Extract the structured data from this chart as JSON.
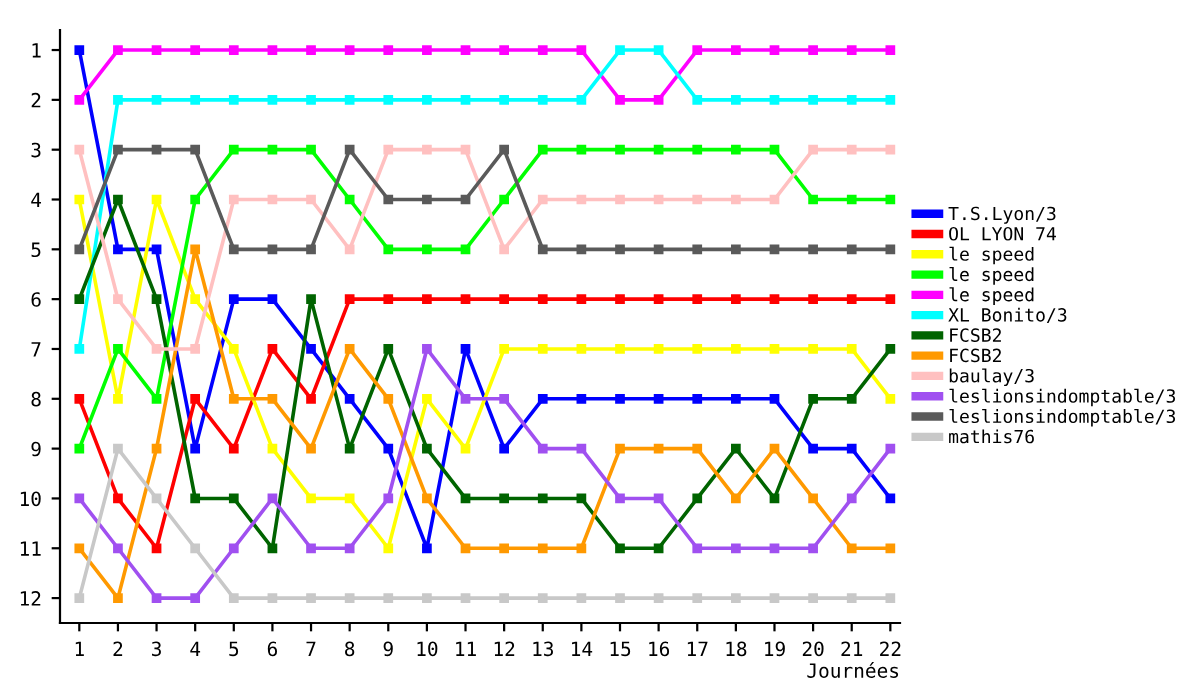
{
  "chart_data": {
    "type": "line",
    "xlabel": "Journées",
    "x": [
      1,
      2,
      3,
      4,
      5,
      6,
      7,
      8,
      9,
      10,
      11,
      12,
      13,
      14,
      15,
      16,
      17,
      18,
      19,
      20,
      21,
      22
    ],
    "xlim": [
      0.5,
      22.25
    ],
    "xticks": [
      1,
      2,
      3,
      4,
      5,
      6,
      7,
      8,
      9,
      10,
      11,
      12,
      13,
      14,
      15,
      16,
      17,
      18,
      19,
      20,
      21,
      22
    ],
    "ylim": [
      12.5,
      0.6
    ],
    "yticks": [
      1,
      2,
      3,
      4,
      5,
      6,
      7,
      8,
      9,
      10,
      11,
      12
    ],
    "grid": false,
    "legend": "right",
    "marker": "square",
    "line_style": "solid",
    "series": [
      {
        "name": "T.S.Lyon/3",
        "color": "#0000ff",
        "values": [
          1,
          5,
          5,
          9,
          6,
          6,
          7,
          8,
          9,
          11,
          7,
          9,
          8,
          8,
          8,
          8,
          8,
          8,
          8,
          9,
          9,
          10
        ]
      },
      {
        "name": "OL LYON 74",
        "color": "#ff0000",
        "values": [
          8,
          10,
          11,
          8,
          9,
          7,
          8,
          6,
          6,
          6,
          6,
          6,
          6,
          6,
          6,
          6,
          6,
          6,
          6,
          6,
          6,
          6
        ]
      },
      {
        "name": "le speed",
        "color": "#ffff00",
        "values": [
          4,
          8,
          4,
          6,
          7,
          9,
          10,
          10,
          11,
          8,
          9,
          7,
          7,
          7,
          7,
          7,
          7,
          7,
          7,
          7,
          7,
          8
        ]
      },
      {
        "name": "le speed",
        "color": "#00ff00",
        "values": [
          9,
          7,
          8,
          4,
          3,
          3,
          3,
          4,
          5,
          5,
          5,
          4,
          3,
          3,
          3,
          3,
          3,
          3,
          3,
          4,
          4,
          4
        ]
      },
      {
        "name": "le speed",
        "color": "#ff00ff",
        "values": [
          2,
          1,
          1,
          1,
          1,
          1,
          1,
          1,
          1,
          1,
          1,
          1,
          1,
          1,
          2,
          2,
          1,
          1,
          1,
          1,
          1,
          1
        ]
      },
      {
        "name": "XL Bonito/3",
        "color": "#00ffff",
        "values": [
          7,
          2,
          2,
          2,
          2,
          2,
          2,
          2,
          2,
          2,
          2,
          2,
          2,
          2,
          1,
          1,
          2,
          2,
          2,
          2,
          2,
          2
        ]
      },
      {
        "name": "FCSB2",
        "color": "#006400",
        "values": [
          6,
          4,
          6,
          10,
          10,
          11,
          6,
          9,
          7,
          9,
          10,
          10,
          10,
          10,
          11,
          11,
          10,
          9,
          10,
          8,
          8,
          7
        ]
      },
      {
        "name": "FCSB2",
        "color": "#ff9900",
        "values": [
          11,
          12,
          9,
          5,
          8,
          8,
          9,
          7,
          8,
          10,
          11,
          11,
          11,
          11,
          9,
          9,
          9,
          10,
          9,
          10,
          11,
          11
        ]
      },
      {
        "name": "baulay/3",
        "color": "#ffc0c0",
        "values": [
          3,
          6,
          7,
          7,
          4,
          4,
          4,
          5,
          3,
          3,
          3,
          5,
          4,
          4,
          4,
          4,
          4,
          4,
          4,
          3,
          3,
          3
        ]
      },
      {
        "name": "leslionsindomptable/3",
        "color": "#a050f0",
        "values": [
          10,
          11,
          12,
          12,
          11,
          10,
          11,
          11,
          10,
          7,
          8,
          8,
          9,
          9,
          10,
          10,
          11,
          11,
          11,
          11,
          10,
          9
        ]
      },
      {
        "name": "leslionsindomptable/3",
        "color": "#5a5a5a",
        "values": [
          5,
          3,
          3,
          3,
          5,
          5,
          5,
          3,
          4,
          4,
          4,
          3,
          5,
          5,
          5,
          5,
          5,
          5,
          5,
          5,
          5,
          5
        ]
      },
      {
        "name": "mathis76",
        "color": "#c8c8c8",
        "values": [
          12,
          9,
          10,
          11,
          12,
          12,
          12,
          12,
          12,
          12,
          12,
          12,
          12,
          12,
          12,
          12,
          12,
          12,
          12,
          12,
          12,
          12
        ]
      }
    ]
  }
}
